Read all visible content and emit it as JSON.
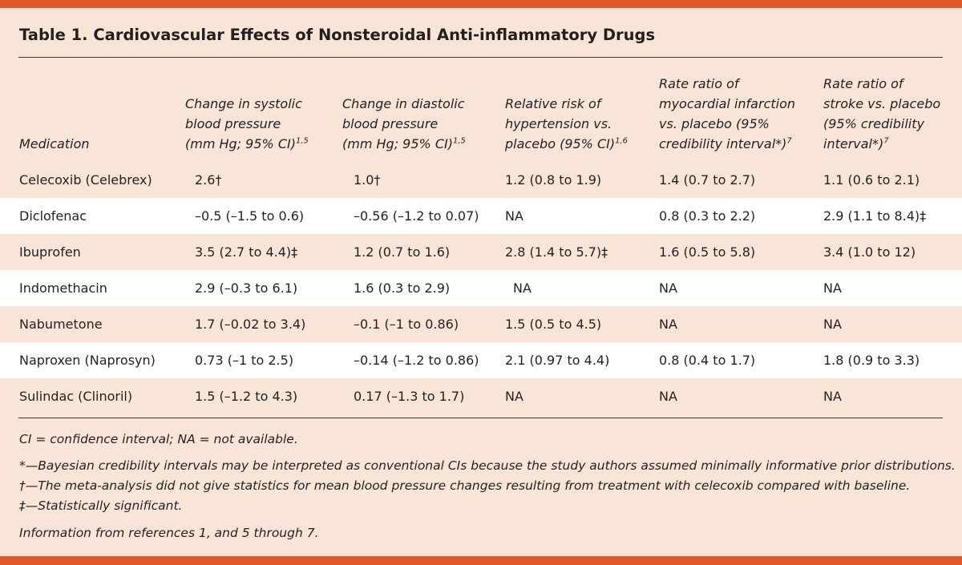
{
  "title": "Table 1. Cardiovascular Effects of Nonsteroidal Anti-inflammatory Drugs",
  "columns": [
    {
      "lines": [
        "Medication"
      ],
      "sup": ""
    },
    {
      "lines": [
        "Change in systolic",
        "blood pressure",
        "(mm Hg; 95% CI)"
      ],
      "sup": "1,5"
    },
    {
      "lines": [
        "Change in diastolic",
        "blood pressure",
        "(mm Hg; 95% CI)"
      ],
      "sup": "1,5"
    },
    {
      "lines": [
        "Relative risk of",
        "hypertension vs.",
        "placebo (95% CI)"
      ],
      "sup": "1,6"
    },
    {
      "lines": [
        "Rate ratio of",
        "myocardial infarction",
        "vs. placebo (95%",
        "credibility interval*)"
      ],
      "sup": "7"
    },
    {
      "lines": [
        "Rate ratio of",
        "stroke vs. placebo",
        "(95% credibility",
        "interval*)"
      ],
      "sup": "7"
    }
  ],
  "rows": [
    [
      "Celecoxib (Celebrex)",
      "2.6†",
      "1.0†",
      "1.2 (0.8 to 1.9)",
      "1.4 (0.7 to 2.7)",
      "1.1 (0.6 to 2.1)"
    ],
    [
      "Diclofenac",
      "–0.5 (–1.5 to 0.6)",
      "–0.56 (–1.2 to 0.07)",
      "NA",
      "0.8 (0.3 to 2.2)",
      "2.9 (1.1 to 8.4)‡"
    ],
    [
      "Ibuprofen",
      "3.5 (2.7 to 4.4)‡",
      "1.2 (0.7 to 1.6)",
      "2.8 (1.4 to 5.7)‡",
      "1.6 (0.5 to 5.8)",
      "3.4 (1.0 to 12)"
    ],
    [
      "Indomethacin",
      "2.9 (–0.3 to 6.1)",
      "1.6 (0.3 to 2.9)",
      "NA",
      "NA",
      "NA"
    ],
    [
      "Nabumetone",
      "1.7 (–0.02 to 3.4)",
      "–0.1 (–1 to 0.86)",
      "1.5 (0.5 to 4.5)",
      "NA",
      "NA"
    ],
    [
      "Naproxen (Naprosyn)",
      "0.73 (–1 to 2.5)",
      "–0.14 (–1.2 to 0.86)",
      "2.1 (0.97 to 4.4)",
      "0.8 (0.4 to 1.7)",
      "1.8 (0.9 to 3.3)"
    ],
    [
      "Sulindac (Clinoril)",
      "1.5 (–1.2 to 4.3)",
      "0.17 (–1.3 to 1.7)",
      "NA",
      "NA",
      "NA"
    ]
  ],
  "footnotes": {
    "abbrev": "CI = confidence interval; NA = not available.",
    "star": "*—Bayesian credibility intervals may be interpreted as conventional CIs because the study authors assumed minimally informative prior distributions.",
    "dagger": "†—The meta-analysis did not give statistics for mean blood pressure changes resulting from treatment with celecoxib compared with baseline.",
    "ddagger": "‡—Statistically significant.",
    "source": "Information from references 1, and 5 through 7."
  }
}
